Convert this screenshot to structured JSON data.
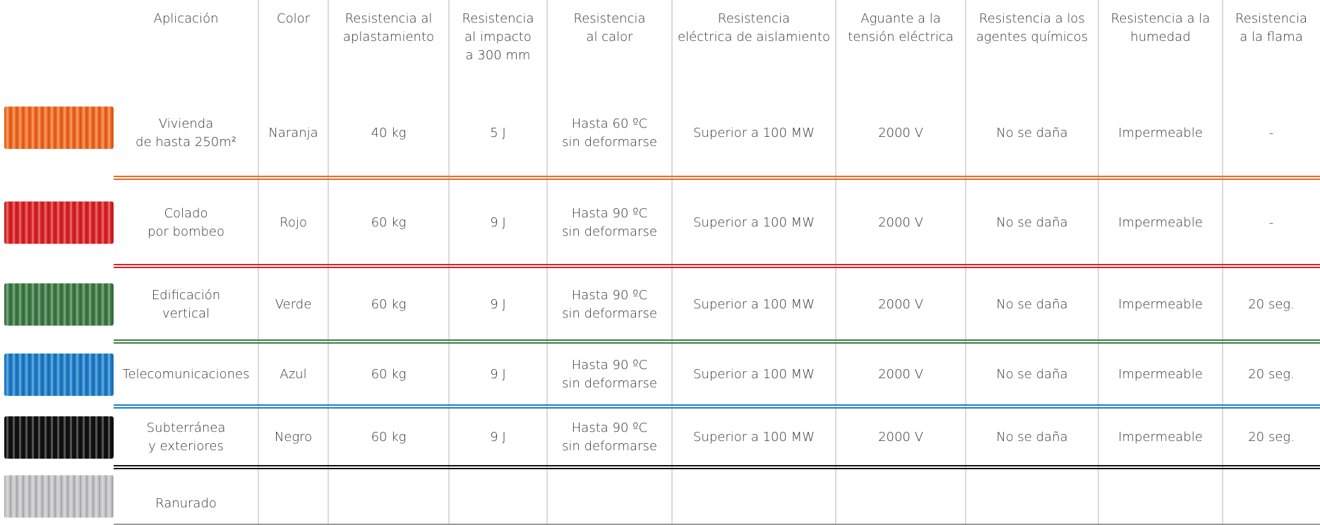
{
  "header": [
    "Aplicación",
    "Color",
    "Resistencia al\naplastamiento",
    "Resistencia\nal impacto\na 300 mm",
    "Resistencia\nal calor",
    "Resistencia\neléctrica de aislamiento",
    "Aguante a la\ntensión eléctrica",
    "Resistencia a los\nagentes químicos",
    "Resistencia a la\nhumedad",
    "Resistencia\na la flama"
  ],
  "rows": [
    {
      "color": "#f26a21",
      "cells": [
        "Vivienda\nde hasta 250m²",
        "Naranja",
        "40 kg",
        "5 J",
        "Hasta 60 ºC\nsin deformarse",
        "Superior a 100 MW",
        "2000 V",
        "No se daña",
        "Impermeable",
        "-"
      ]
    },
    {
      "color": "#dc2326",
      "cells": [
        "Colado\npor bombeo",
        "Rojo",
        "60 kg",
        "9 J",
        "Hasta 90 ºC\nsin deformarse",
        "Superior a 100 MW",
        "2000 V",
        "No se daña",
        "Impermeable",
        "-"
      ]
    },
    {
      "color": "#3e7c45",
      "cells": [
        "Edificación\nvertical",
        "Verde",
        "60 kg",
        "9 J",
        "Hasta 90 ºC\nsin deformarse",
        "Superior a 100 MW",
        "2000 V",
        "No se daña",
        "Impermeable",
        "20 seg."
      ]
    },
    {
      "color": "#1f7fcb",
      "cells": [
        "Telecomunicaciones",
        "Azul",
        "60 kg",
        "9 J",
        "Hasta 90 ºC\nsin deformarse",
        "Superior a 100 MW",
        "2000 V",
        "No se daña",
        "Impermeable",
        "20 seg."
      ]
    },
    {
      "color": "#111111",
      "cells": [
        "Subterránea\ny exteriores",
        "Negro",
        "60 kg",
        "9 J",
        "Hasta 90 ºC\nsin deformarse",
        "Superior a 100 MW",
        "2000 V",
        "No se daña",
        "Impermeable",
        "20 seg."
      ]
    },
    {
      "color": "#c4c4c7",
      "cells": [
        "Ranurado"
      ]
    }
  ]
}
